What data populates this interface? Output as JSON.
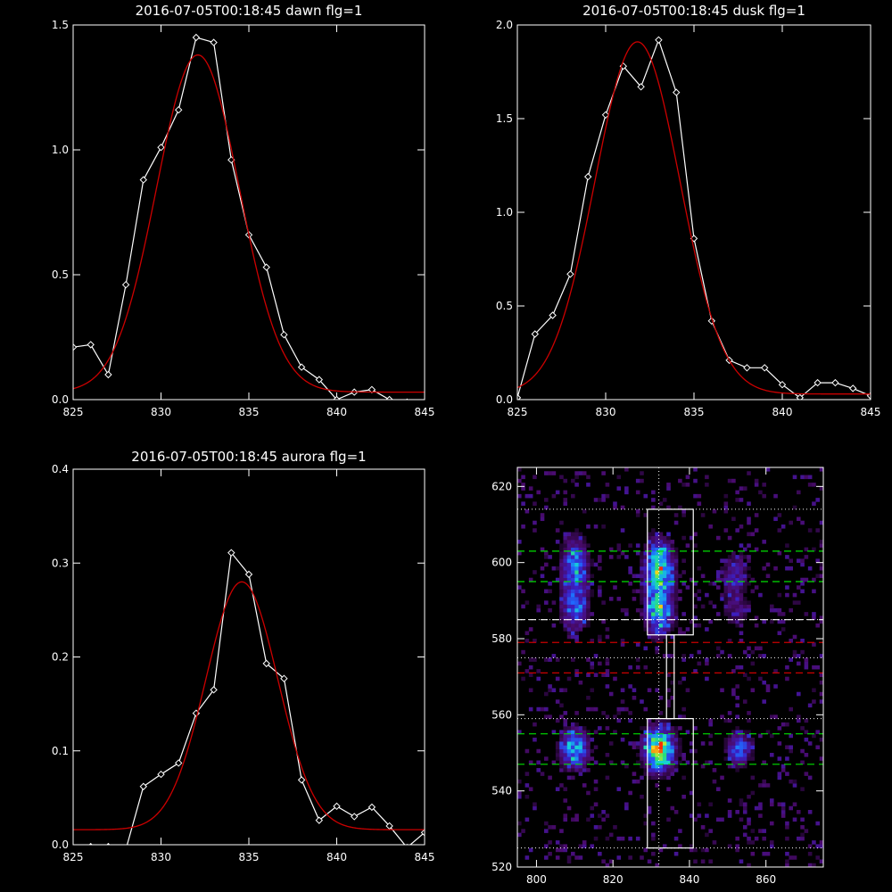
{
  "figure": {
    "background": "#000000",
    "axis_color": "#ffffff",
    "data_color": "#ffffff",
    "fit_color": "#cc0000"
  },
  "chart_data": [
    {
      "id": "dawn",
      "type": "line",
      "title": "2016-07-05T00:18:45 dawn flg=1",
      "xlabel": "",
      "ylabel": "",
      "xlim": [
        825,
        845
      ],
      "ylim": [
        0,
        1.5
      ],
      "xticks": [
        825,
        830,
        835,
        840,
        845
      ],
      "yticks": [
        0.0,
        0.5,
        1.0,
        1.5
      ],
      "ytick_labels": [
        "0.0",
        "0.5",
        "1.0",
        "1.5"
      ],
      "series": [
        {
          "style": "line-diamond",
          "color": "#ffffff",
          "x": [
            825,
            826,
            827,
            828,
            829,
            830,
            831,
            832,
            833,
            834,
            835,
            836,
            837,
            838,
            839,
            840,
            841,
            842,
            843,
            844,
            845
          ],
          "y": [
            0.21,
            0.22,
            0.1,
            0.46,
            0.88,
            1.01,
            1.16,
            1.45,
            1.43,
            0.96,
            0.66,
            0.53,
            0.26,
            0.13,
            0.08,
            0.0,
            0.03,
            0.04,
            0.0,
            -0.01,
            -0.02
          ]
        },
        {
          "style": "gaussian-fit",
          "color": "#cc0000",
          "amplitude": 1.35,
          "center": 832.1,
          "sigma": 2.35,
          "offset": 0.03,
          "x_range": [
            825,
            845
          ]
        }
      ]
    },
    {
      "id": "dusk",
      "type": "line",
      "title": "2016-07-05T00:18:45 dusk flg=1",
      "xlabel": "",
      "ylabel": "",
      "xlim": [
        825,
        845
      ],
      "ylim": [
        0,
        2.0
      ],
      "xticks": [
        825,
        830,
        835,
        840,
        845
      ],
      "yticks": [
        0.0,
        0.5,
        1.0,
        1.5,
        2.0
      ],
      "ytick_labels": [
        "0.0",
        "0.5",
        "1.0",
        "1.5",
        "2.0"
      ],
      "series": [
        {
          "style": "line-diamond",
          "color": "#ffffff",
          "x": [
            825,
            826,
            827,
            828,
            829,
            830,
            831,
            832,
            833,
            834,
            835,
            836,
            837,
            838,
            839,
            840,
            841,
            842,
            843,
            844,
            845
          ],
          "y": [
            0.01,
            0.35,
            0.45,
            0.67,
            1.19,
            1.52,
            1.78,
            1.67,
            1.92,
            1.64,
            0.86,
            0.42,
            0.21,
            0.17,
            0.17,
            0.08,
            0.01,
            0.09,
            0.09,
            0.06,
            0.02
          ]
        },
        {
          "style": "gaussian-fit",
          "color": "#cc0000",
          "amplitude": 1.88,
          "center": 831.8,
          "sigma": 2.4,
          "offset": 0.03,
          "x_range": [
            825,
            845
          ]
        }
      ]
    },
    {
      "id": "aurora",
      "type": "line",
      "title": "2016-07-05T00:18:45 aurora flg=1",
      "xlabel": "",
      "ylabel": "",
      "xlim": [
        825,
        845
      ],
      "ylim": [
        0,
        0.4
      ],
      "xticks": [
        825,
        830,
        835,
        840,
        845
      ],
      "yticks": [
        0.0,
        0.1,
        0.2,
        0.3,
        0.4
      ],
      "ytick_labels": [
        "0.0",
        "0.1",
        "0.2",
        "0.3",
        "0.4"
      ],
      "series": [
        {
          "style": "line-diamond",
          "color": "#ffffff",
          "x": [
            825,
            826,
            827,
            828,
            829,
            830,
            831,
            832,
            833,
            834,
            835,
            836,
            837,
            838,
            839,
            840,
            841,
            842,
            843,
            844,
            845
          ],
          "y": [
            -0.005,
            -0.002,
            -0.002,
            -0.005,
            0.062,
            0.075,
            0.087,
            0.14,
            0.165,
            0.311,
            0.288,
            0.193,
            0.177,
            0.069,
            0.026,
            0.041,
            0.03,
            0.04,
            0.02,
            -0.003,
            0.013
          ]
        },
        {
          "style": "gaussian-fit",
          "color": "#cc0000",
          "amplitude": 0.264,
          "center": 834.6,
          "sigma": 2.05,
          "offset": 0.016,
          "x_range": [
            825,
            845
          ]
        }
      ]
    },
    {
      "id": "image",
      "type": "heatmap",
      "title": "",
      "xlabel": "",
      "ylabel": "",
      "xlim": [
        795,
        875
      ],
      "ylim": [
        520,
        625
      ],
      "xticks": [
        800,
        820,
        840,
        860
      ],
      "yticks": [
        520,
        540,
        560,
        580,
        600,
        620
      ],
      "colormap": [
        "#000000",
        "#4a0b6e",
        "#3b1fc4",
        "#1f6bff",
        "#16d0d8",
        "#2fe06a",
        "#f0f020",
        "#ff2a00"
      ],
      "sources": [
        {
          "x": 810,
          "y": 599,
          "sx": 2.2,
          "sy": 4.5,
          "peak": 0.55
        },
        {
          "x": 810,
          "y": 588,
          "sx": 2.2,
          "sy": 4.0,
          "peak": 0.45
        },
        {
          "x": 832,
          "y": 598,
          "sx": 2.3,
          "sy": 5.0,
          "peak": 0.8
        },
        {
          "x": 832,
          "y": 587,
          "sx": 2.3,
          "sy": 4.0,
          "peak": 0.6
        },
        {
          "x": 852,
          "y": 597,
          "sx": 2.2,
          "sy": 4.0,
          "peak": 0.25
        },
        {
          "x": 852,
          "y": 588,
          "sx": 2.2,
          "sy": 3.0,
          "peak": 0.18
        },
        {
          "x": 810,
          "y": 551,
          "sx": 2.3,
          "sy": 3.3,
          "peak": 0.62
        },
        {
          "x": 832,
          "y": 551,
          "sx": 2.5,
          "sy": 3.6,
          "peak": 1.0
        },
        {
          "x": 853,
          "y": 551,
          "sx": 2.2,
          "sy": 2.8,
          "peak": 0.42
        }
      ],
      "noise_level": 0.07,
      "dotted_hlines": [
        614,
        585,
        575,
        559,
        525
      ],
      "dotted_vlines": [
        832
      ],
      "green_dashed_hlines": [
        603,
        595,
        555,
        547
      ],
      "white_dashed_hlines": [
        585
      ],
      "red_dashed_hlines": [
        579,
        571
      ],
      "boxes": [
        {
          "x0": 829,
          "x1": 841,
          "y0": 525,
          "y1": 559
        },
        {
          "x0": 829,
          "x1": 841,
          "y0": 581,
          "y1": 614
        },
        {
          "x0": 834,
          "x1": 836,
          "y0": 559,
          "y1": 581
        }
      ],
      "line_colors": {
        "dotted": "#ffffff",
        "green": "#00e000",
        "white": "#ffffff",
        "red": "#cc0000",
        "box": "#ffffff"
      }
    }
  ]
}
